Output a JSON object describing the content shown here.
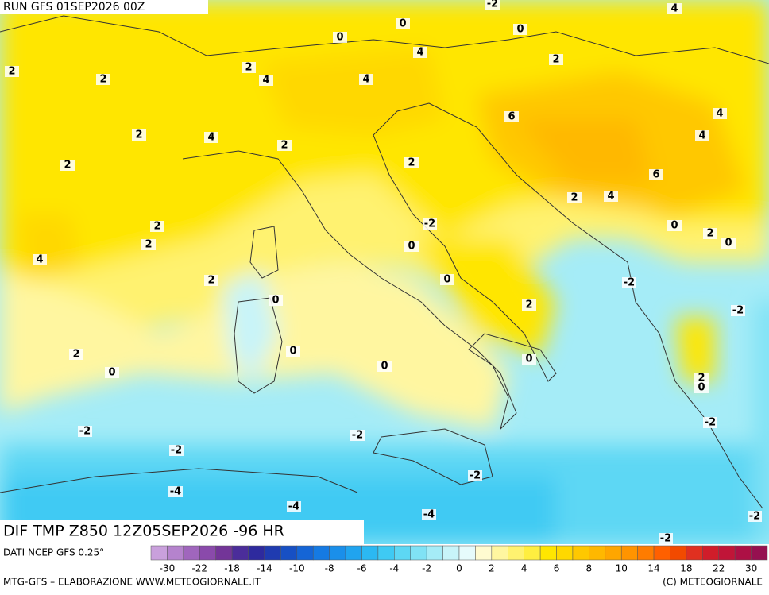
{
  "header": {
    "run": "RUN GFS 01SEP2026 00Z"
  },
  "map": {
    "contour_labels": [
      2,
      2,
      2,
      4,
      0,
      0,
      4,
      4,
      0,
      2,
      4,
      2,
      4,
      2,
      2,
      2,
      6,
      4,
      4,
      6,
      2,
      4,
      2,
      2,
      4,
      -2,
      0,
      0,
      2,
      0,
      2,
      0,
      -2,
      0,
      2,
      -2,
      0,
      2,
      0,
      0,
      0,
      2,
      0,
      -2,
      -2,
      -2,
      -2,
      -2,
      -4,
      -4,
      -4,
      -2,
      -2,
      -2
    ]
  },
  "footer": {
    "field": "DIF TMP Z850 12Z05SEP2026 -96 HR",
    "source": "DATI NCEP GFS 0.25°",
    "credit": "MTG-GFS – ELABORAZIONE WWW.METEOGIORNALE.IT",
    "copyright": "(C) METEOGIORNALE"
  },
  "legend": {
    "labels": [
      -30,
      -22,
      -18,
      -14,
      -10,
      -8,
      -6,
      -4,
      -2,
      0,
      2,
      4,
      6,
      8,
      10,
      14,
      18,
      22,
      30
    ],
    "colors": [
      "#c9a0dc",
      "#b583cd",
      "#a066bd",
      "#8a4aab",
      "#733598",
      "#4b2d9a",
      "#2e2a9e",
      "#1f3bb0",
      "#1750c4",
      "#1565d6",
      "#157ae3",
      "#1a8fea",
      "#20a4ef",
      "#2bb8f2",
      "#3fcaf3",
      "#5dd7f4",
      "#80e2f5",
      "#a5ecf7",
      "#c8f4f9",
      "#e6fbfc",
      "#fffbd0",
      "#fff6a0",
      "#fff270",
      "#ffee40",
      "#ffe600",
      "#ffd800",
      "#ffc800",
      "#ffb800",
      "#ffa600",
      "#ff9400",
      "#ff7c00",
      "#ff6000",
      "#f24a00",
      "#e03020",
      "#d01d2a",
      "#c01538",
      "#ad1045",
      "#961050"
    ]
  }
}
